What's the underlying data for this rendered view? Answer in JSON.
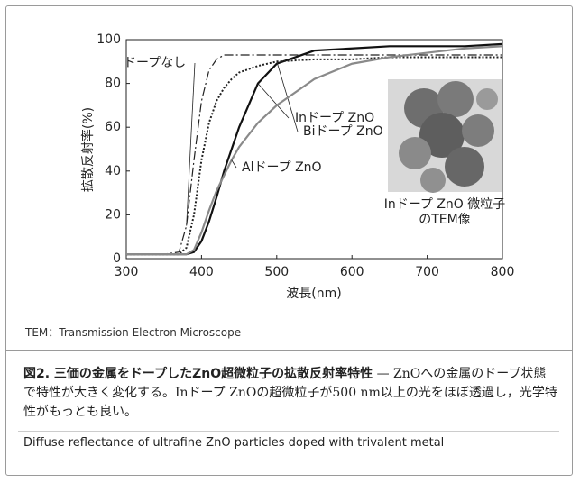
{
  "chart_data": {
    "type": "line",
    "xlabel": "波長(nm)",
    "ylabel": "拡散反射率(%)",
    "x": [
      300,
      350,
      370,
      380,
      390,
      400,
      410,
      420,
      430,
      440,
      450,
      475,
      500,
      550,
      600,
      650,
      700,
      750,
      800
    ],
    "xlim": [
      300,
      800
    ],
    "xticks": [
      300,
      400,
      500,
      600,
      700,
      800
    ],
    "ylim": [
      0,
      100
    ],
    "yticks": [
      0,
      20,
      40,
      60,
      80,
      100
    ],
    "series": [
      {
        "name": "ドープなし",
        "color": "#222222",
        "style": "dashdot",
        "values": [
          2,
          2,
          3,
          15,
          45,
          72,
          86,
          91,
          93,
          93,
          93,
          93,
          93,
          93,
          93,
          93,
          93,
          93,
          93
        ]
      },
      {
        "name": "Inドープ ZnO",
        "color": "#111111",
        "style": "solid",
        "values": [
          2,
          2,
          2,
          2,
          3,
          8,
          17,
          28,
          40,
          50,
          60,
          80,
          89,
          95,
          96,
          97,
          97,
          97,
          98
        ]
      },
      {
        "name": "Biドープ ZnO",
        "color": "#222222",
        "style": "dotted",
        "values": [
          2,
          2,
          2,
          5,
          20,
          45,
          62,
          72,
          78,
          82,
          85,
          88,
          90,
          91,
          91,
          92,
          92,
          92,
          92
        ]
      },
      {
        "name": "Alドープ ZnO",
        "color": "#8a8a8a",
        "style": "solid",
        "values": [
          2,
          2,
          2,
          2,
          4,
          12,
          22,
          31,
          38,
          45,
          51,
          62,
          70,
          82,
          89,
          92,
          94,
          96,
          97
        ]
      }
    ],
    "image_caption": [
      "Inドープ ZnO 微粒子",
      "のTEM像"
    ]
  },
  "footnote": "TEM：Transmission Electron Microscope",
  "caption": {
    "title": "図2. 三価の金属をドープしたZnO超微粒子の拡散反射率特性",
    "body": " — ZnOへの金属のドープ状態で特性が大きく変化する。Inドープ ZnOの超微粒子が500 nm以上の光をほぼ透過し，光学特性がもっとも良い。",
    "english": "Diffuse reflectance of ultrafine ZnO particles doped with trivalent metal"
  }
}
